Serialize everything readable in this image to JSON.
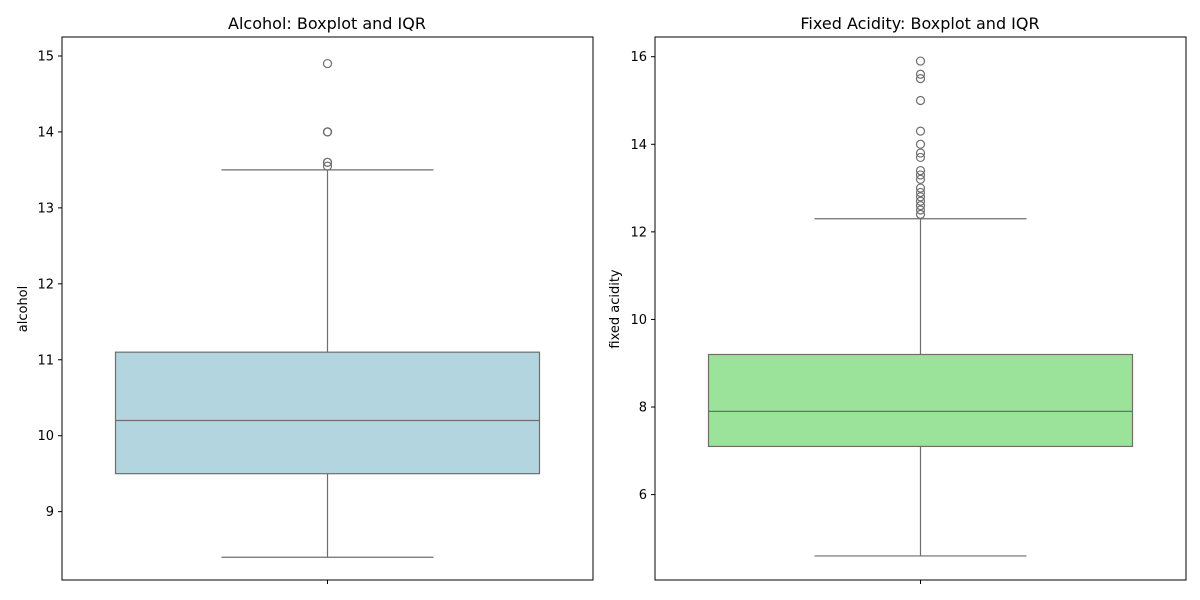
{
  "chart_data": [
    {
      "type": "box",
      "title": "Alcohol: Boxplot and IQR",
      "xlabel": "",
      "ylabel": "alcohol",
      "ylim": [
        8.1,
        15.25
      ],
      "yticks": [
        9,
        10,
        11,
        12,
        13,
        14,
        15
      ],
      "grid": false,
      "box_color": "#b3d5e0",
      "edge_color": "#6e6e6e",
      "stats": {
        "whisker_low": 8.4,
        "q1": 9.5,
        "median": 10.2,
        "q3": 11.1,
        "whisker_high": 13.5
      },
      "outliers": [
        13.55,
        13.6,
        13.6,
        14.0,
        14.0,
        14.0,
        14.9
      ]
    },
    {
      "type": "box",
      "title": "Fixed Acidity: Boxplot and IQR",
      "xlabel": "",
      "ylabel": "fixed acidity",
      "ylim": [
        4.05,
        16.45
      ],
      "yticks": [
        6,
        8,
        10,
        12,
        14,
        16
      ],
      "grid": false,
      "box_color": "#9be39b",
      "edge_color": "#6e6e6e",
      "stats": {
        "whisker_low": 4.6,
        "q1": 7.1,
        "median": 7.9,
        "q3": 9.2,
        "whisker_high": 12.3
      },
      "outliers": [
        12.4,
        12.5,
        12.6,
        12.7,
        12.8,
        12.9,
        13.0,
        13.2,
        13.3,
        13.4,
        13.7,
        13.8,
        14.0,
        14.3,
        15.0,
        15.5,
        15.6,
        15.9
      ]
    }
  ]
}
